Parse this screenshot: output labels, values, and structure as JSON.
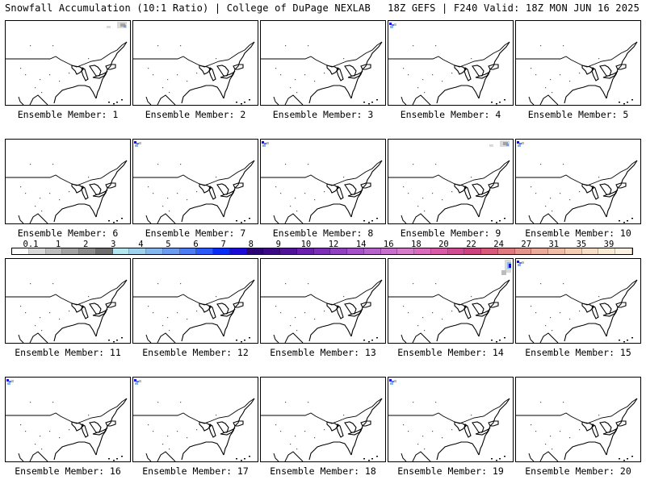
{
  "header": {
    "left": "Snowfall Accumulation (10:1 Ratio) | College of DuPage NEXLAB",
    "right": "18Z GEFS | F240 Valid: 18Z MON JUN 16 2025"
  },
  "panels": [
    {
      "label": "Ensemble Member: 1",
      "snow": "ne-gray"
    },
    {
      "label": "Ensemble Member: 2",
      "snow": "none"
    },
    {
      "label": "Ensemble Member: 3",
      "snow": "none"
    },
    {
      "label": "Ensemble Member: 4",
      "snow": "nw-blue"
    },
    {
      "label": "Ensemble Member: 5",
      "snow": "none"
    },
    {
      "label": "Ensemble Member: 6",
      "snow": "none"
    },
    {
      "label": "Ensemble Member: 7",
      "snow": "nw-blue"
    },
    {
      "label": "Ensemble Member: 8",
      "snow": "nw-blue"
    },
    {
      "label": "Ensemble Member: 9",
      "snow": "ne-gray"
    },
    {
      "label": "Ensemble Member: 10",
      "snow": "nw-blue"
    },
    {
      "label": "Ensemble Member: 11",
      "snow": "none"
    },
    {
      "label": "Ensemble Member: 12",
      "snow": "none"
    },
    {
      "label": "Ensemble Member: 13",
      "snow": "none"
    },
    {
      "label": "Ensemble Member: 14",
      "snow": "ne-blue"
    },
    {
      "label": "Ensemble Member: 15",
      "snow": "nw-blue"
    },
    {
      "label": "Ensemble Member: 16",
      "snow": "nw-blue"
    },
    {
      "label": "Ensemble Member: 17",
      "snow": "nw-blue"
    },
    {
      "label": "Ensemble Member: 18",
      "snow": "none"
    },
    {
      "label": "Ensemble Member: 19",
      "snow": "nw-blue"
    },
    {
      "label": "Ensemble Member: 20",
      "snow": "none"
    }
  ],
  "legend": {
    "ticks": [
      "0.1",
      "1",
      "2",
      "3",
      "4",
      "5",
      "6",
      "7",
      "8",
      "9",
      "10",
      "12",
      "14",
      "16",
      "18",
      "20",
      "22",
      "24",
      "27",
      "31",
      "35",
      "39"
    ],
    "colors": [
      "#ffffff",
      "#d9d9d9",
      "#bdbdbd",
      "#a3a3a3",
      "#8c8c8c",
      "#6e6e6e",
      "#b3e8f0",
      "#9ed2ee",
      "#86b8f0",
      "#6c9cf0",
      "#4d7df5",
      "#2b5af7",
      "#0a2cf7",
      "#1c0ad6",
      "#2a0573",
      "#3c0a86",
      "#51139a",
      "#6a1fae",
      "#7d2fb8",
      "#9140c1",
      "#a650c9",
      "#b862cc",
      "#c86fce",
      "#d57bc9",
      "#da6cbb",
      "#d85aa8",
      "#d24c93",
      "#cc437f",
      "#d9597c",
      "#e07a80",
      "#e5938d",
      "#ebaa9a",
      "#f0bda6",
      "#f4cfb4",
      "#f7dec4",
      "#fbecd6",
      "#fdf3e3"
    ]
  }
}
